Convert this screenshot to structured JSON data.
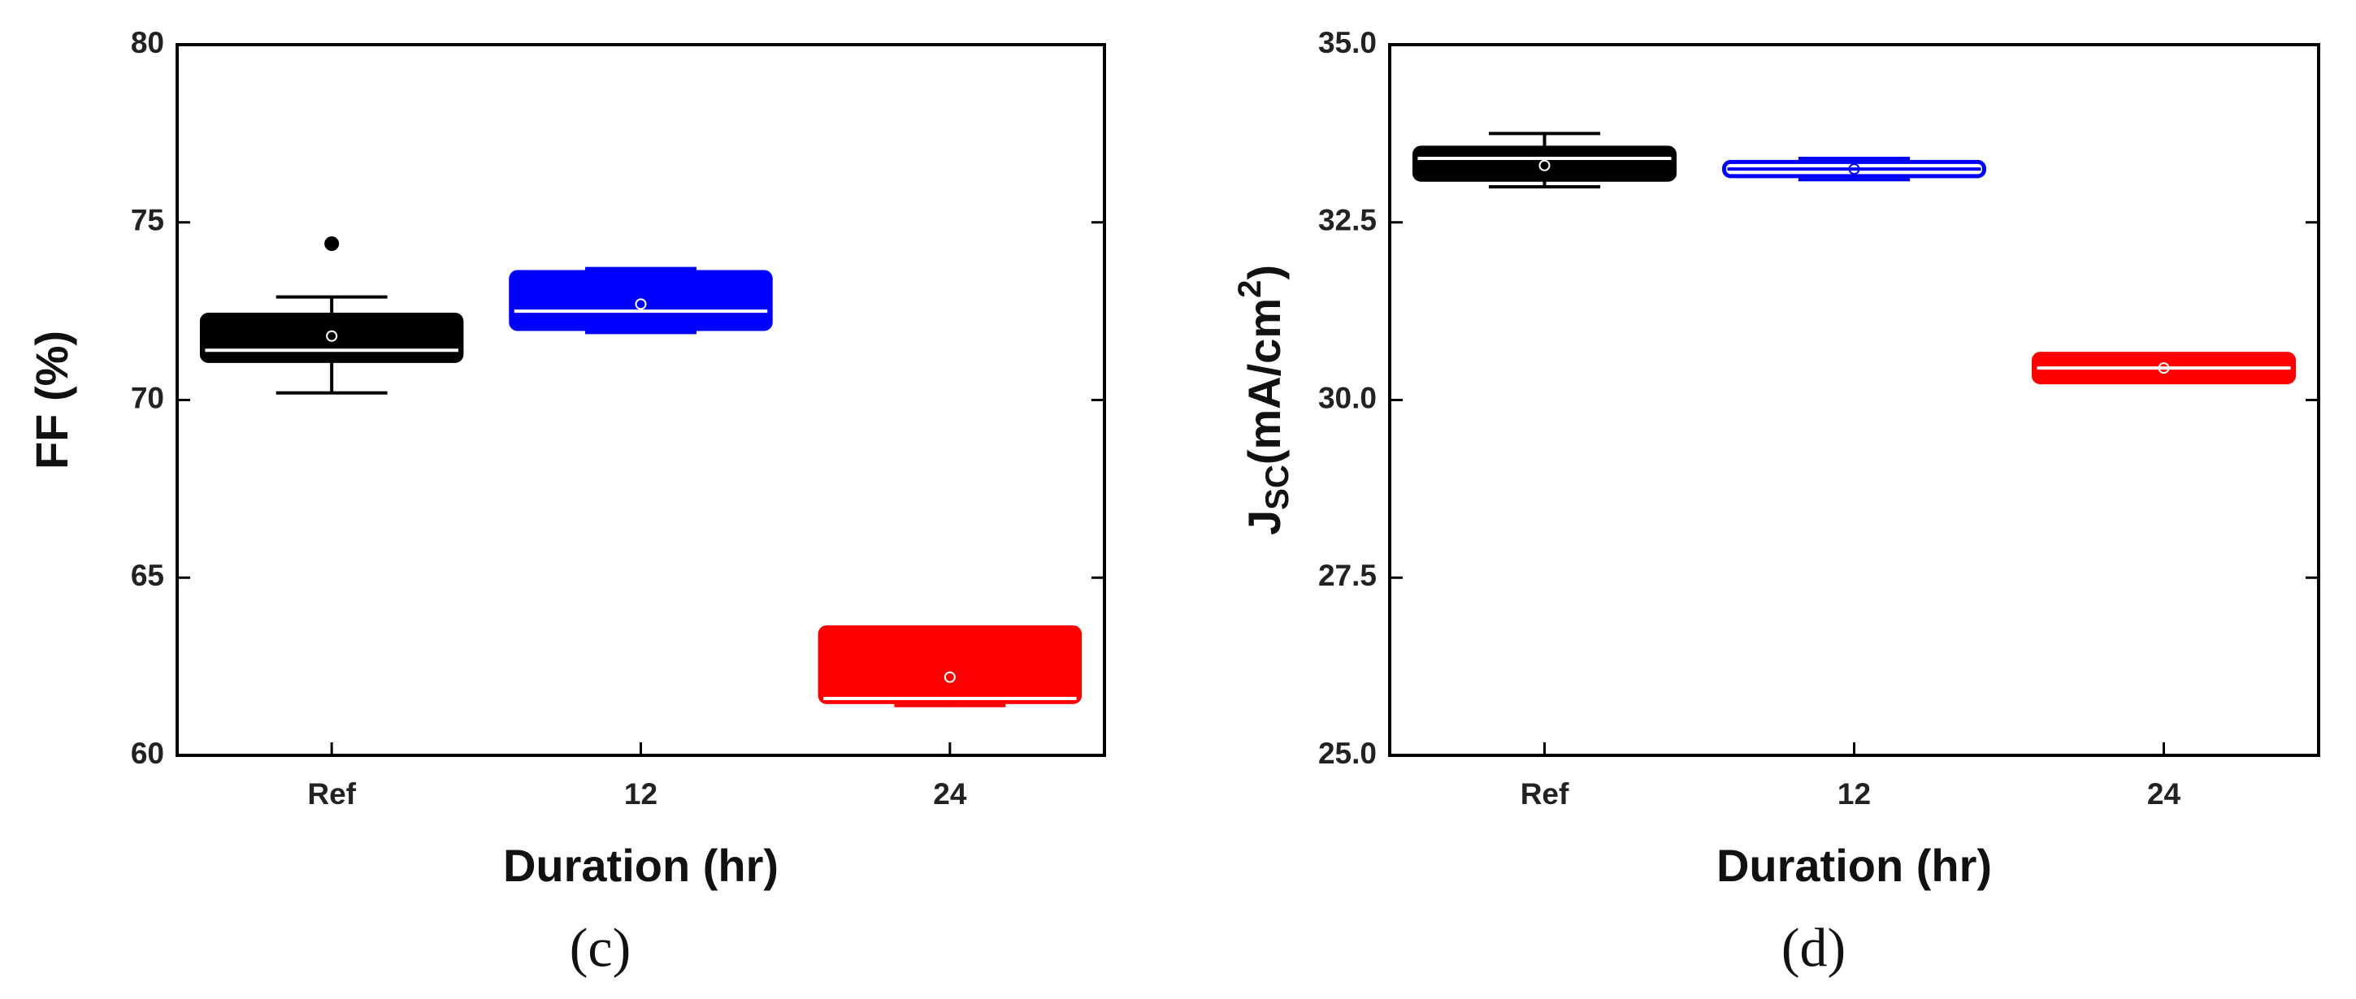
{
  "chart_data": [
    {
      "type": "box",
      "caption": "(c)",
      "xlabel": "Duration (hr)",
      "ylabel": [
        "FF (%)"
      ],
      "categories": [
        "Ref",
        "12",
        "24"
      ],
      "ylim": [
        60,
        80
      ],
      "yticks": [
        60,
        65,
        70,
        75,
        80
      ],
      "boxes": [
        {
          "color": "#000000",
          "min": 70.2,
          "q1": 71.1,
          "median": 71.4,
          "q3": 72.4,
          "max": 72.9,
          "mean": 71.8,
          "outliers": [
            74.4
          ]
        },
        {
          "color": "#0000ff",
          "min": 71.9,
          "q1": 72.0,
          "median": 72.5,
          "q3": 73.6,
          "max": 73.7,
          "mean": 72.7
        },
        {
          "color": "#ff0000",
          "min": 61.4,
          "q1": 61.5,
          "median": 61.6,
          "q3": 63.6,
          "max": 63.6,
          "mean": 62.2
        }
      ]
    },
    {
      "type": "box",
      "caption": "(d)",
      "xlabel": "Duration (hr)",
      "ylabel": [
        "J",
        "SC",
        "(mA/cm",
        "2",
        ")"
      ],
      "categories": [
        "Ref",
        "12",
        "24"
      ],
      "ylim": [
        25,
        35
      ],
      "yticks": [
        {
          "value": 25,
          "label": "25.0"
        },
        27.5,
        {
          "value": 30,
          "label": "30.0"
        },
        32.5,
        {
          "value": 35,
          "label": "35.0"
        }
      ],
      "boxes": [
        {
          "color": "#000000",
          "min": 33.0,
          "q1": 33.1,
          "median": 33.4,
          "q3": 33.55,
          "max": 33.75,
          "mean": 33.3
        },
        {
          "color": "#0000ff",
          "hollow": true,
          "min": 33.1,
          "q1": 33.15,
          "median": 33.25,
          "q3": 33.35,
          "max": 33.4,
          "mean": 33.25
        },
        {
          "color": "#ff0000",
          "min": 30.25,
          "q1": 30.25,
          "median": 30.45,
          "q3": 30.65,
          "max": 30.65,
          "mean": 30.45
        }
      ]
    }
  ]
}
